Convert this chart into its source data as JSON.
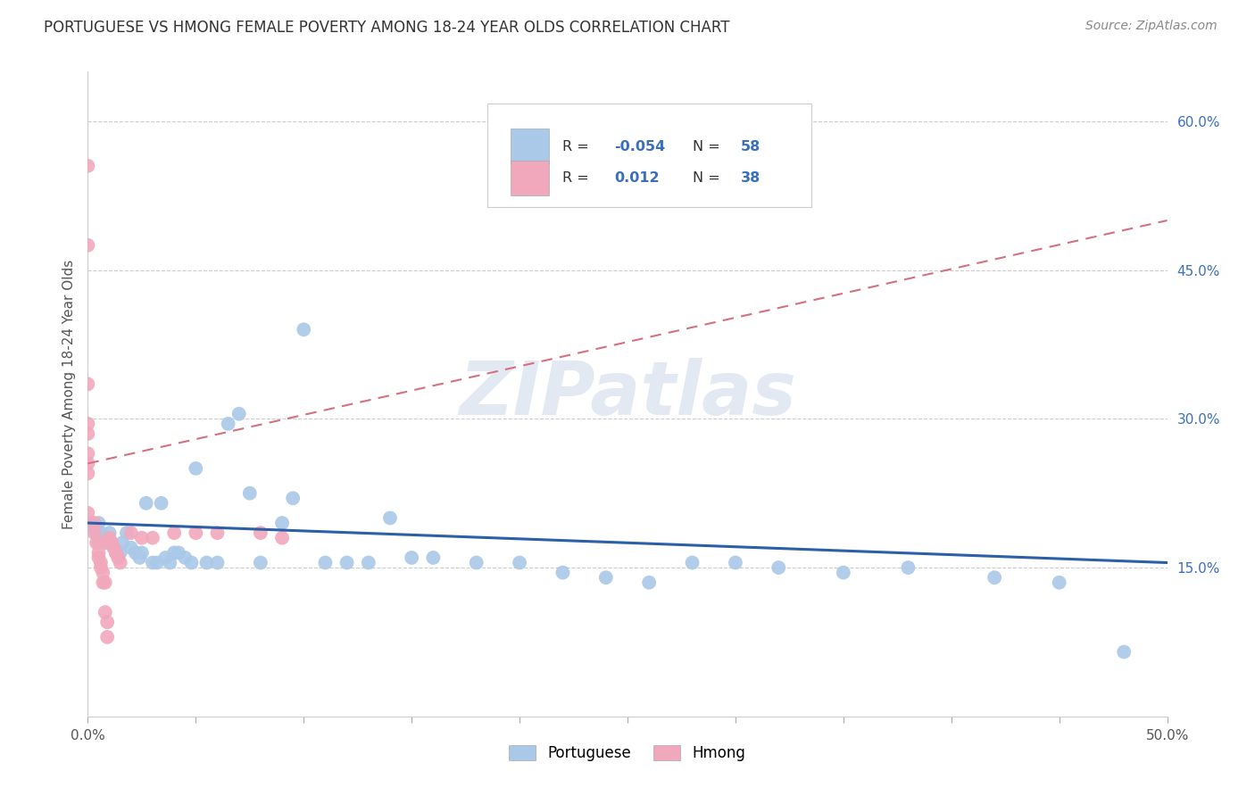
{
  "title": "PORTUGUESE VS HMONG FEMALE POVERTY AMONG 18-24 YEAR OLDS CORRELATION CHART",
  "source": "Source: ZipAtlas.com",
  "ylabel": "Female Poverty Among 18-24 Year Olds",
  "xlim": [
    0.0,
    0.5
  ],
  "ylim": [
    0.0,
    0.65
  ],
  "xticks": [
    0.0,
    0.05,
    0.1,
    0.15,
    0.2,
    0.25,
    0.3,
    0.35,
    0.4,
    0.45,
    0.5
  ],
  "xtick_labels": [
    "0.0%",
    "",
    "",
    "",
    "",
    "",
    "",
    "",
    "",
    "",
    "50.0%"
  ],
  "ytick_vals_right": [
    0.15,
    0.3,
    0.45,
    0.6
  ],
  "ytick_labels_right": [
    "15.0%",
    "30.0%",
    "45.0%",
    "60.0%"
  ],
  "portuguese_color": "#aac8e8",
  "hmong_color": "#f2a8bc",
  "line_portuguese_color": "#2b5fa8",
  "line_hmong_color": "#d47080",
  "watermark_text": "ZIPatlas",
  "portuguese_x": [
    0.002,
    0.003,
    0.004,
    0.005,
    0.006,
    0.007,
    0.008,
    0.009,
    0.01,
    0.011,
    0.012,
    0.013,
    0.015,
    0.016,
    0.018,
    0.02,
    0.022,
    0.024,
    0.025,
    0.027,
    0.03,
    0.032,
    0.034,
    0.036,
    0.038,
    0.04,
    0.042,
    0.045,
    0.048,
    0.05,
    0.055,
    0.06,
    0.065,
    0.07,
    0.075,
    0.08,
    0.09,
    0.095,
    0.1,
    0.11,
    0.12,
    0.13,
    0.14,
    0.15,
    0.16,
    0.18,
    0.2,
    0.22,
    0.24,
    0.26,
    0.28,
    0.3,
    0.32,
    0.35,
    0.38,
    0.42,
    0.45,
    0.48
  ],
  "portuguese_y": [
    0.195,
    0.19,
    0.185,
    0.195,
    0.185,
    0.18,
    0.175,
    0.175,
    0.185,
    0.175,
    0.17,
    0.165,
    0.165,
    0.175,
    0.185,
    0.17,
    0.165,
    0.16,
    0.165,
    0.215,
    0.155,
    0.155,
    0.215,
    0.16,
    0.155,
    0.165,
    0.165,
    0.16,
    0.155,
    0.25,
    0.155,
    0.155,
    0.295,
    0.305,
    0.225,
    0.155,
    0.195,
    0.22,
    0.39,
    0.155,
    0.155,
    0.155,
    0.2,
    0.16,
    0.16,
    0.155,
    0.155,
    0.145,
    0.14,
    0.135,
    0.155,
    0.155,
    0.15,
    0.145,
    0.15,
    0.14,
    0.135,
    0.065
  ],
  "hmong_x": [
    0.0,
    0.0,
    0.0,
    0.0,
    0.0,
    0.0,
    0.0,
    0.0,
    0.0,
    0.003,
    0.003,
    0.004,
    0.005,
    0.005,
    0.005,
    0.006,
    0.006,
    0.007,
    0.007,
    0.008,
    0.008,
    0.009,
    0.009,
    0.01,
    0.01,
    0.011,
    0.012,
    0.013,
    0.014,
    0.015,
    0.02,
    0.025,
    0.03,
    0.04,
    0.05,
    0.06,
    0.08,
    0.09
  ],
  "hmong_y": [
    0.555,
    0.475,
    0.335,
    0.295,
    0.285,
    0.265,
    0.255,
    0.245,
    0.205,
    0.195,
    0.185,
    0.175,
    0.175,
    0.165,
    0.16,
    0.155,
    0.15,
    0.145,
    0.135,
    0.135,
    0.105,
    0.095,
    0.08,
    0.18,
    0.175,
    0.175,
    0.17,
    0.165,
    0.16,
    0.155,
    0.185,
    0.18,
    0.18,
    0.185,
    0.185,
    0.185,
    0.185,
    0.18
  ],
  "hmong_line_start_y": 0.255,
  "hmong_line_end_y": 0.5,
  "portuguese_line_start_y": 0.195,
  "portuguese_line_end_y": 0.155
}
